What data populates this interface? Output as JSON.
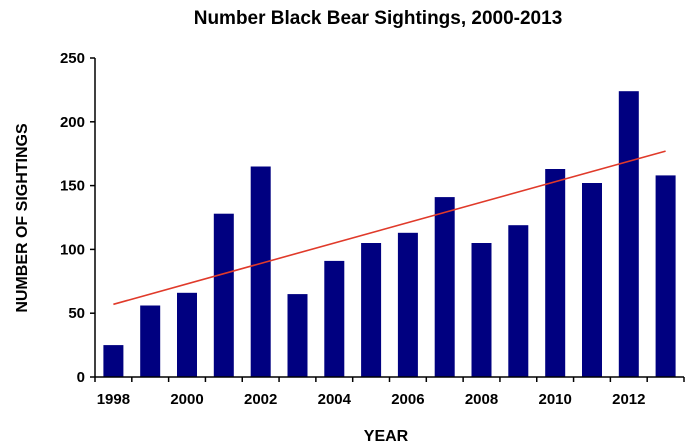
{
  "chart_data": {
    "type": "bar",
    "title": "Number Black Bear Sightings, 2000-2013",
    "xlabel": "YEAR",
    "ylabel": "NUMBER OF SIGHTINGS",
    "ylim": [
      0,
      250
    ],
    "yticks": [
      0,
      50,
      100,
      150,
      200,
      250
    ],
    "categories": [
      "1998",
      "1999",
      "2000",
      "2001",
      "2002",
      "2003",
      "2004",
      "2005",
      "2006",
      "2007",
      "2008",
      "2009",
      "2010",
      "2011",
      "2012",
      "2013"
    ],
    "xtick_labels": [
      "1998",
      "2000",
      "2002",
      "2004",
      "2006",
      "2008",
      "2010",
      "2012"
    ],
    "values": [
      25,
      56,
      66,
      128,
      165,
      65,
      91,
      105,
      113,
      141,
      105,
      119,
      163,
      152,
      224,
      158
    ],
    "trendline": {
      "type": "linear",
      "start": 57,
      "end": 177
    },
    "grid": false,
    "legend": "none",
    "colors": {
      "bar": "#000080",
      "trendline": "#e03a2a",
      "axis": "#000000"
    }
  }
}
